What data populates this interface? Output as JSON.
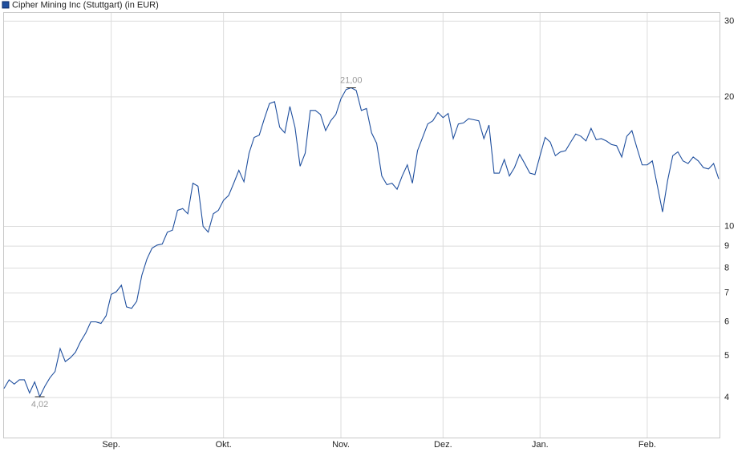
{
  "chart_data": {
    "type": "line",
    "title": "Cipher Mining Inc (Stuttgart) (in EUR)",
    "log_scale": true,
    "grid": true,
    "ylim": [
      3.23,
      31.5
    ],
    "yticks": [
      4,
      5,
      6,
      7,
      8,
      9,
      10,
      20,
      30
    ],
    "categories": [
      null,
      null,
      null,
      null,
      null,
      null,
      null,
      null,
      null,
      null,
      null,
      null,
      null,
      null,
      null,
      null,
      null,
      null,
      null,
      null,
      null,
      "Sep.",
      null,
      null,
      null,
      null,
      null,
      null,
      null,
      null,
      null,
      null,
      null,
      null,
      null,
      null,
      null,
      null,
      null,
      null,
      null,
      null,
      null,
      "Okt.",
      null,
      null,
      null,
      null,
      null,
      null,
      null,
      null,
      null,
      null,
      null,
      null,
      null,
      null,
      null,
      null,
      null,
      null,
      null,
      null,
      null,
      null,
      "Nov.",
      null,
      null,
      null,
      null,
      null,
      null,
      null,
      null,
      null,
      null,
      null,
      null,
      null,
      null,
      null,
      null,
      null,
      null,
      null,
      "Dez.",
      null,
      null,
      null,
      null,
      null,
      null,
      null,
      null,
      null,
      null,
      null,
      null,
      null,
      null,
      null,
      null,
      null,
      null,
      "Jan.",
      null,
      null,
      null,
      null,
      null,
      null,
      null,
      null,
      null,
      null,
      null,
      null,
      null,
      null,
      null,
      null,
      null,
      null,
      null,
      null,
      "Feb.",
      null,
      null,
      null,
      null,
      null,
      null,
      null,
      null,
      null,
      null,
      null,
      null,
      null,
      null
    ],
    "series": [
      {
        "name": "Cipher Mining Inc (Stuttgart) (in EUR)",
        "color": "#1f4f9e",
        "values": [
          4.2,
          4.4,
          4.3,
          4.4,
          4.4,
          4.1,
          4.35,
          4.02,
          4.25,
          4.45,
          4.6,
          5.2,
          4.85,
          4.95,
          5.1,
          5.4,
          5.65,
          6.0,
          6.0,
          5.95,
          6.2,
          6.95,
          7.05,
          7.3,
          6.5,
          6.45,
          6.7,
          7.7,
          8.4,
          8.9,
          9.05,
          9.1,
          9.7,
          9.8,
          10.9,
          11.0,
          10.7,
          12.6,
          12.4,
          10.0,
          9.7,
          10.7,
          10.9,
          11.5,
          11.8,
          12.6,
          13.5,
          12.7,
          14.8,
          16.1,
          16.3,
          17.8,
          19.3,
          19.5,
          17.0,
          16.5,
          19.0,
          17.0,
          13.8,
          14.8,
          18.6,
          18.6,
          18.2,
          16.7,
          17.6,
          18.2,
          19.8,
          20.8,
          21.0,
          20.7,
          18.6,
          18.8,
          16.5,
          15.6,
          13.1,
          12.5,
          12.6,
          12.2,
          13.1,
          13.9,
          12.6,
          15.0,
          16.1,
          17.3,
          17.6,
          18.4,
          17.9,
          18.3,
          16.0,
          17.3,
          17.4,
          17.8,
          17.7,
          17.6,
          16.0,
          17.2,
          13.3,
          13.3,
          14.3,
          13.1,
          13.7,
          14.7,
          14.0,
          13.3,
          13.2,
          14.6,
          16.1,
          15.7,
          14.6,
          14.9,
          15.0,
          15.7,
          16.4,
          16.2,
          15.8,
          16.9,
          15.9,
          16.0,
          15.8,
          15.5,
          15.4,
          14.5,
          16.2,
          16.7,
          15.2,
          13.9,
          13.9,
          14.2,
          12.4,
          10.8,
          12.8,
          14.6,
          14.9,
          14.2,
          14.0,
          14.5,
          14.2,
          13.7,
          13.6,
          14.0,
          12.9
        ]
      }
    ],
    "annotations": [
      {
        "text": "4,02",
        "value": 4.02
      },
      {
        "text": "21,00",
        "value": 21.0
      }
    ]
  }
}
